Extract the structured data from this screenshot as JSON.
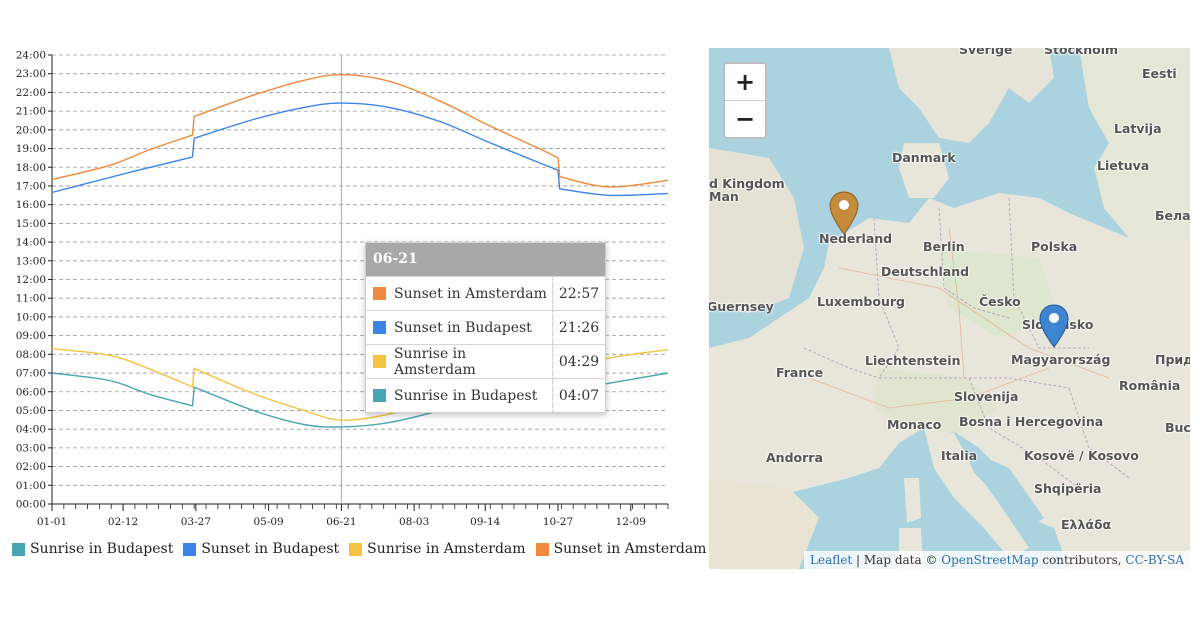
{
  "chart_data": {
    "type": "line",
    "xlabel": "",
    "ylabel": "",
    "x_ticks": [
      "01-01",
      "02-12",
      "03-27",
      "05-09",
      "06-21",
      "08-03",
      "09-14",
      "10-27",
      "12-09"
    ],
    "y_ticks": [
      "00:00",
      "01:00",
      "02:00",
      "03:00",
      "04:00",
      "05:00",
      "06:00",
      "07:00",
      "08:00",
      "09:00",
      "10:00",
      "11:00",
      "12:00",
      "13:00",
      "14:00",
      "15:00",
      "16:00",
      "17:00",
      "18:00",
      "19:00",
      "20:00",
      "21:00",
      "22:00",
      "23:00",
      "24:00"
    ],
    "ylim": [
      0,
      24
    ],
    "xlim_day_of_year": [
      1,
      365
    ],
    "grid": "horizontal dashed",
    "legend_position": "bottom",
    "cursor_date": "06-21",
    "series": [
      {
        "name": "Sunrise in Budapest",
        "color": "#4aa5b3",
        "x_day": [
          1,
          35,
          59,
          84,
          85,
          120,
          150,
          172,
          200,
          230,
          260,
          290,
          300,
          301,
          330,
          365
        ],
        "y_hours": [
          7.0,
          6.6,
          5.85,
          5.25,
          6.25,
          5.0,
          4.25,
          4.12,
          4.35,
          5.0,
          5.85,
          6.7,
          6.97,
          5.97,
          6.45,
          7.0
        ]
      },
      {
        "name": "Sunset in Budapest",
        "color": "#3d85e5",
        "x_day": [
          1,
          35,
          59,
          84,
          85,
          120,
          150,
          172,
          200,
          230,
          260,
          290,
          300,
          301,
          330,
          365
        ],
        "y_hours": [
          16.65,
          17.45,
          18.0,
          18.55,
          19.55,
          20.55,
          21.2,
          21.43,
          21.2,
          20.45,
          19.3,
          18.2,
          17.85,
          16.85,
          16.5,
          16.6
        ]
      },
      {
        "name": "Sunrise in Amsterdam",
        "color": "#f5c242",
        "x_day": [
          1,
          35,
          59,
          84,
          85,
          120,
          150,
          172,
          200,
          230,
          260,
          290,
          300,
          301,
          330,
          365
        ],
        "y_hours": [
          8.3,
          7.95,
          7.2,
          6.25,
          7.25,
          5.9,
          5.0,
          4.48,
          4.8,
          5.6,
          6.6,
          7.6,
          8.1,
          7.1,
          7.8,
          8.25
        ]
      },
      {
        "name": "Sunset in Amsterdam",
        "color": "#f08a3c",
        "x_day": [
          1,
          35,
          59,
          84,
          85,
          120,
          150,
          172,
          200,
          230,
          260,
          290,
          300,
          301,
          330,
          365
        ],
        "y_hours": [
          17.35,
          18.1,
          18.95,
          19.72,
          20.72,
          21.85,
          22.65,
          22.95,
          22.6,
          21.55,
          20.2,
          18.95,
          18.5,
          17.5,
          16.95,
          17.3
        ]
      }
    ]
  },
  "tooltip": {
    "header": "06-21",
    "rows": [
      {
        "name": "Sunset in Amsterdam",
        "value": "22:57",
        "color": "#f08a3c"
      },
      {
        "name": "Sunset in Budapest",
        "value": "21:26",
        "color": "#3d85e5"
      },
      {
        "name": "Sunrise in Amsterdam",
        "value": "04:29",
        "color": "#f5c242"
      },
      {
        "name": "Sunrise in Budapest",
        "value": "04:07",
        "color": "#4aa5b3"
      }
    ]
  },
  "legend": [
    {
      "name": "Sunrise in Budapest",
      "color": "#4aa5b3"
    },
    {
      "name": "Sunset in Budapest",
      "color": "#3d85e5"
    },
    {
      "name": "Sunrise in Amsterdam",
      "color": "#f5c242"
    },
    {
      "name": "Sunset in Amsterdam",
      "color": "#f08a3c"
    }
  ],
  "map": {
    "zoom_in": "+",
    "zoom_out": "−",
    "labels": [
      "Sverige",
      "Stockholm",
      "Eesti",
      "Latvija",
      "Lietuva",
      "Danmark",
      "d Kingdom",
      "Man",
      "Nederland",
      "Berlin",
      "Polska",
      "Белар",
      "Deutschland",
      "Guernsey",
      "Luxembourg",
      "Česko",
      "Slovensko",
      "France",
      "Liechtenstein",
      "Magyarország",
      "Прид",
      "România",
      "Slovenija",
      "Monaco",
      "Bosna i Hercegovina",
      "Buc",
      "Andorra",
      "Italia",
      "Kosovë / Kosovo",
      "Shqipëria",
      "Ελλάδα"
    ],
    "markers": [
      {
        "name": "Amsterdam",
        "color": "#c58a3a"
      },
      {
        "name": "Budapest",
        "color": "#3d85d0"
      }
    ],
    "attribution": {
      "leaflet": "Leaflet",
      "mid": " | Map data © ",
      "osm": "OpenStreetMap",
      "contrib": " contributors, ",
      "license": "CC-BY-SA"
    }
  }
}
